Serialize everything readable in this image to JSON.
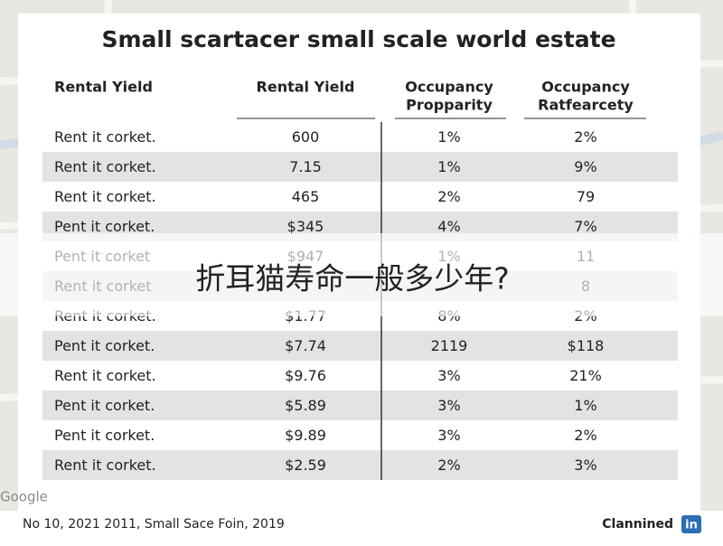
{
  "title": "Small scartacer small scale world estate",
  "table": {
    "headers": [
      [
        "Rental Yield"
      ],
      [
        "Rental Yield"
      ],
      [
        "Occupancy",
        "Propparity"
      ],
      [
        "Occupancy",
        "Ratfearcety"
      ]
    ],
    "rows": [
      [
        "Rent it corket.",
        "600",
        "1%",
        "2%"
      ],
      [
        "Rent it corket.",
        "7.15",
        "1%",
        "9%"
      ],
      [
        "Rent it corket.",
        "465",
        "2%",
        "79"
      ],
      [
        "Pent it corket.",
        "$345",
        "4%",
        "7%"
      ],
      [
        "Pent it corket",
        "$947",
        "1%",
        "11"
      ],
      [
        "Rent it corket",
        null,
        null,
        "8"
      ],
      [
        "Rent it corket.",
        "$1.77",
        "8%",
        "2%"
      ],
      [
        "Pent it corket.",
        "$7.74",
        "2119",
        "$118"
      ],
      [
        "Rent it corket.",
        "$9.76",
        "3%",
        "21%"
      ],
      [
        "Pent it corket.",
        "$5.89",
        "3%",
        "1%"
      ],
      [
        "Pent it corket.",
        "$9.89",
        "3%",
        "2%"
      ],
      [
        "Rent it corket.",
        "$2.59",
        "2%",
        "3%"
      ]
    ]
  },
  "overlay": "折耳猫寿命一般多少年?",
  "map_label": "Google",
  "footer": {
    "left": "No 10, 2021 2011, Small Sace Foin, 2019",
    "brand": "Clannined",
    "logo": "in"
  }
}
